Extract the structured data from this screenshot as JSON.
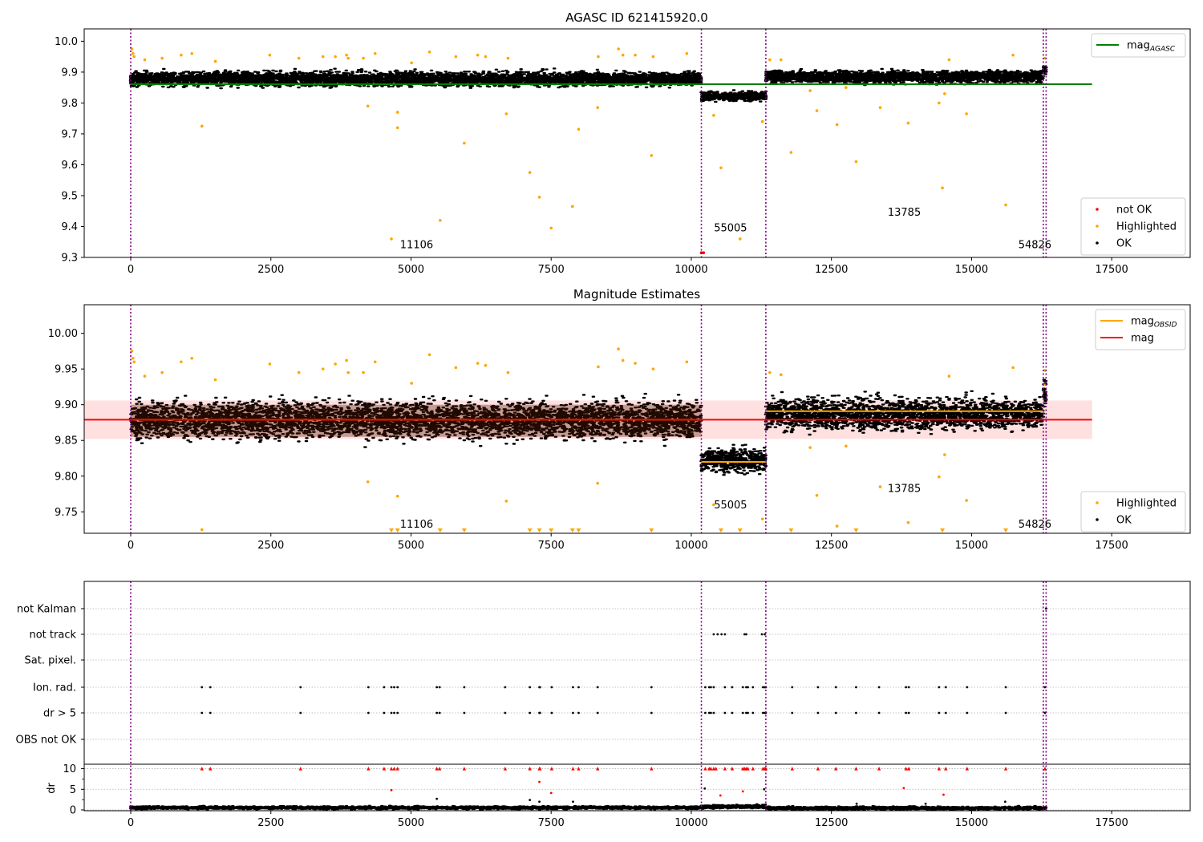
{
  "chart_data": [
    {
      "type": "scatter",
      "title": "AGASC ID 621415920.0",
      "xlim": [
        -830,
        18900
      ],
      "ylim": [
        9.3,
        10.04
      ],
      "xticks": [
        0,
        2500,
        5000,
        7500,
        10000,
        12500,
        15000,
        17500
      ],
      "yticks": [
        9.3,
        9.4,
        9.5,
        9.6,
        9.7,
        9.8,
        9.9,
        10.0
      ],
      "ytick_labels": [
        "9.3",
        "9.4",
        "9.5",
        "9.6",
        "9.7",
        "9.8",
        "9.9",
        "10.0"
      ],
      "grid": false,
      "legend_upper": {
        "placement": "top-right",
        "entries": [
          {
            "label": "mag",
            "sub": "AGASC",
            "color": "#008000",
            "kind": "line"
          }
        ]
      },
      "legend_lower": {
        "placement": "bottom-right",
        "entries": [
          {
            "label": "not OK",
            "color": "#ff0000",
            "kind": "dot"
          },
          {
            "label": "Highlighted",
            "color": "#ffa500",
            "kind": "dot"
          },
          {
            "label": "OK",
            "color": "#000000",
            "kind": "dot"
          }
        ]
      },
      "agasc_mag": 9.861,
      "agasc_line_x": [
        0,
        17150
      ],
      "obs_boundaries": [
        0,
        10180,
        11330,
        16280,
        16330
      ],
      "obs_labels": [
        {
          "text": "11106",
          "x": 5100,
          "y": 9.33
        },
        {
          "text": "55005",
          "x": 10700,
          "y": 9.385
        },
        {
          "text": "13785",
          "x": 13800,
          "y": 9.435
        },
        {
          "text": "54826",
          "x": 16130,
          "y": 9.33
        }
      ],
      "series": [
        {
          "name": "OK",
          "color": "#000000",
          "segments": [
            {
              "x0": 0,
              "x1": 10180,
              "mean": 9.878,
              "spread": 0.02
            },
            {
              "x0": 10180,
              "x1": 11330,
              "mean": 9.822,
              "spread": 0.013
            },
            {
              "x0": 11330,
              "x1": 16280,
              "mean": 9.885,
              "spread": 0.017
            },
            {
              "x0": 16280,
              "x1": 16330,
              "mean": 9.91,
              "spread": 0.02
            }
          ]
        },
        {
          "name": "Highlighted",
          "color": "#ffa500",
          "points": [
            [
              20,
              9.975
            ],
            [
              40,
              9.96
            ],
            [
              60,
              9.95
            ],
            [
              250,
              9.94
            ],
            [
              560,
              9.945
            ],
            [
              900,
              9.955
            ],
            [
              1090,
              9.96
            ],
            [
              1270,
              9.725
            ],
            [
              1510,
              9.935
            ],
            [
              2480,
              9.955
            ],
            [
              3000,
              9.945
            ],
            [
              3430,
              9.95
            ],
            [
              3650,
              9.95
            ],
            [
              3850,
              9.955
            ],
            [
              3880,
              9.945
            ],
            [
              4150,
              9.945
            ],
            [
              4230,
              9.79
            ],
            [
              4360,
              9.96
            ],
            [
              4650,
              9.36
            ],
            [
              4760,
              9.77
            ],
            [
              4760,
              9.72
            ],
            [
              5010,
              9.93
            ],
            [
              5330,
              9.965
            ],
            [
              5520,
              9.42
            ],
            [
              5800,
              9.95
            ],
            [
              5950,
              9.67
            ],
            [
              6190,
              9.955
            ],
            [
              6330,
              9.95
            ],
            [
              6700,
              9.765
            ],
            [
              6730,
              9.945
            ],
            [
              7120,
              9.575
            ],
            [
              7290,
              9.495
            ],
            [
              7500,
              9.395
            ],
            [
              7880,
              9.465
            ],
            [
              7990,
              9.715
            ],
            [
              8330,
              9.785
            ],
            [
              8340,
              9.95
            ],
            [
              8700,
              9.975
            ],
            [
              8780,
              9.955
            ],
            [
              9000,
              9.955
            ],
            [
              9290,
              9.63
            ],
            [
              9320,
              9.95
            ],
            [
              9920,
              9.96
            ],
            [
              10400,
              9.76
            ],
            [
              10530,
              9.59
            ],
            [
              10870,
              9.36
            ],
            [
              11270,
              9.74
            ],
            [
              11400,
              9.94
            ],
            [
              11600,
              9.94
            ],
            [
              11780,
              9.64
            ],
            [
              12120,
              9.84
            ],
            [
              12240,
              9.775
            ],
            [
              12600,
              9.73
            ],
            [
              12760,
              9.85
            ],
            [
              12940,
              9.61
            ],
            [
              13370,
              9.785
            ],
            [
              13870,
              9.735
            ],
            [
              14420,
              9.8
            ],
            [
              14480,
              9.525
            ],
            [
              14520,
              9.83
            ],
            [
              14600,
              9.94
            ],
            [
              14910,
              9.765
            ],
            [
              15610,
              9.47
            ],
            [
              15740,
              9.955
            ],
            [
              16310,
              9.945
            ]
          ]
        },
        {
          "name": "not OK",
          "color": "#ff0000",
          "points": [
            [
              10180,
              9.315
            ],
            [
              10220,
              9.315
            ]
          ]
        }
      ]
    },
    {
      "type": "scatter",
      "title": "Magnitude Estimates",
      "xlim": [
        -830,
        18900
      ],
      "ylim": [
        9.72,
        10.04
      ],
      "xticks": [
        0,
        2500,
        5000,
        7500,
        10000,
        12500,
        15000,
        17500
      ],
      "yticks": [
        9.75,
        9.8,
        9.85,
        9.9,
        9.95,
        10.0
      ],
      "ytick_labels": [
        "9.75",
        "9.80",
        "9.85",
        "9.90",
        "9.95",
        "10.00"
      ],
      "grid": false,
      "legend_upper": {
        "placement": "top-right",
        "entries": [
          {
            "label": "mag",
            "sub": "OBSID",
            "color": "#ffa500",
            "kind": "line"
          },
          {
            "label": "mag",
            "sub": "",
            "color": "#ff0000",
            "kind": "line"
          }
        ]
      },
      "legend_lower": {
        "placement": "bottom-right",
        "entries": [
          {
            "label": "Highlighted",
            "color": "#ffa500",
            "kind": "dot"
          },
          {
            "label": "OK",
            "color": "#000000",
            "kind": "dot"
          }
        ]
      },
      "mag": 9.879,
      "mag_band": [
        9.852,
        9.906
      ],
      "mag_line_x": [
        -830,
        17150
      ],
      "obsid_mags": [
        {
          "x0": 0,
          "x1": 10180,
          "mag": 9.879
        },
        {
          "x0": 10180,
          "x1": 11330,
          "mag": 9.82
        },
        {
          "x0": 11330,
          "x1": 16280,
          "mag": 9.891
        },
        {
          "x0": 16280,
          "x1": 16330,
          "mag": 9.928
        }
      ],
      "obs_boundaries": [
        0,
        10180,
        11330,
        16280,
        16330
      ],
      "obs_labels": [
        {
          "text": "11106",
          "x": 5100,
          "y": 9.728
        },
        {
          "text": "55005",
          "x": 10700,
          "y": 9.755
        },
        {
          "text": "13785",
          "x": 13800,
          "y": 9.778
        },
        {
          "text": "54826",
          "x": 16130,
          "y": 9.728
        }
      ],
      "offscale_markers_x": [
        4650,
        4760,
        5520,
        5950,
        7120,
        7290,
        7500,
        7880,
        7990,
        9290,
        10530,
        10870,
        11780,
        12940,
        14480,
        15610
      ],
      "series": [
        {
          "name": "OK",
          "color": "#000000",
          "segments": [
            {
              "x0": 0,
              "x1": 10180,
              "mean": 9.879,
              "spread": 0.022
            },
            {
              "x0": 10180,
              "x1": 11330,
              "mean": 9.822,
              "spread": 0.014
            },
            {
              "x0": 11330,
              "x1": 16280,
              "mean": 9.887,
              "spread": 0.019
            },
            {
              "x0": 16280,
              "x1": 16330,
              "mean": 9.92,
              "spread": 0.02
            }
          ]
        },
        {
          "name": "Highlighted",
          "color": "#ffa500",
          "points": [
            [
              20,
              9.975
            ],
            [
              40,
              9.965
            ],
            [
              60,
              9.96
            ],
            [
              250,
              9.94
            ],
            [
              560,
              9.945
            ],
            [
              900,
              9.96
            ],
            [
              1090,
              9.965
            ],
            [
              1270,
              9.725
            ],
            [
              1510,
              9.935
            ],
            [
              2480,
              9.957
            ],
            [
              3000,
              9.945
            ],
            [
              3430,
              9.95
            ],
            [
              3650,
              9.957
            ],
            [
              3850,
              9.962
            ],
            [
              3880,
              9.945
            ],
            [
              4150,
              9.945
            ],
            [
              4230,
              9.792
            ],
            [
              4360,
              9.96
            ],
            [
              4760,
              9.772
            ],
            [
              5010,
              9.93
            ],
            [
              5330,
              9.97
            ],
            [
              5800,
              9.952
            ],
            [
              6190,
              9.958
            ],
            [
              6330,
              9.955
            ],
            [
              6700,
              9.765
            ],
            [
              6730,
              9.945
            ],
            [
              8330,
              9.79
            ],
            [
              8340,
              9.953
            ],
            [
              8700,
              9.978
            ],
            [
              8780,
              9.962
            ],
            [
              9000,
              9.958
            ],
            [
              9320,
              9.95
            ],
            [
              9920,
              9.96
            ],
            [
              10400,
              9.76
            ],
            [
              11270,
              9.74
            ],
            [
              11400,
              9.945
            ],
            [
              11600,
              9.942
            ],
            [
              12120,
              9.84
            ],
            [
              12240,
              9.773
            ],
            [
              12600,
              9.73
            ],
            [
              12760,
              9.842
            ],
            [
              13370,
              9.785
            ],
            [
              13870,
              9.735
            ],
            [
              14420,
              9.799
            ],
            [
              14520,
              9.83
            ],
            [
              14600,
              9.94
            ],
            [
              14910,
              9.766
            ],
            [
              15740,
              9.952
            ],
            [
              16310,
              9.948
            ]
          ]
        }
      ]
    },
    {
      "type": "scatter",
      "title": "",
      "xlim": [
        -830,
        18900
      ],
      "xticks": [
        0,
        2500,
        5000,
        7500,
        10000,
        12500,
        15000,
        17500
      ],
      "flag_rows": [
        "not Kalman",
        "not track",
        "Sat. pixel.",
        "Ion. rad.",
        "dr > 5",
        "OBS not OK"
      ],
      "grid": true,
      "obs_boundaries": [
        0,
        10180,
        11330,
        16280,
        16330
      ],
      "flags": {
        "not Kalman": [
          16330
        ],
        "not track": [
          10400,
          10470,
          10540,
          10600,
          10950,
          10980,
          11260,
          11310
        ],
        "Sat. pixel.": [],
        "Ion. rad.": [
          1270,
          1420,
          3030,
          4240,
          4520,
          4650,
          4700,
          4760,
          5460,
          5510,
          5950,
          6680,
          7120,
          7290,
          7300,
          7510,
          7890,
          7990,
          8330,
          9290,
          10250,
          10320,
          10350,
          10400,
          10600,
          10730,
          10920,
          10980,
          11010,
          11100,
          11280,
          11310,
          11330,
          11800,
          12260,
          12580,
          12940,
          13350,
          13830,
          13880,
          14420,
          14540,
          14920,
          15610,
          16310
        ],
        "dr > 5": [
          1270,
          1420,
          3030,
          4240,
          4520,
          4650,
          4700,
          4760,
          5460,
          5510,
          5950,
          6680,
          7120,
          7290,
          7300,
          7510,
          7890,
          7990,
          8330,
          9290,
          10250,
          10320,
          10350,
          10400,
          10600,
          10730,
          10920,
          10980,
          11010,
          11100,
          11280,
          11310,
          11330,
          11800,
          12260,
          12580,
          12940,
          13350,
          13830,
          13880,
          14420,
          14540,
          14920,
          15610,
          16310
        ],
        "OBS not OK": []
      },
      "dr": {
        "ylabel": "dr",
        "ylim": [
          0,
          10.5
        ],
        "yticks": [
          0,
          5,
          10
        ],
        "clip": 10,
        "baseline_segments": [
          {
            "x0": 0,
            "x1": 10180,
            "mean": 0.55,
            "spread": 0.3
          },
          {
            "x0": 10180,
            "x1": 11330,
            "mean": 0.8,
            "spread": 0.35
          },
          {
            "x0": 11330,
            "x1": 16330,
            "mean": 0.45,
            "spread": 0.3
          }
        ],
        "clipped_points_x": [
          1270,
          1420,
          3030,
          4240,
          4520,
          4650,
          4700,
          4760,
          5460,
          5510,
          5950,
          6680,
          7120,
          7290,
          7300,
          7510,
          7890,
          7990,
          8330,
          9290,
          10250,
          10320,
          10350,
          10400,
          10440,
          10600,
          10730,
          10920,
          10950,
          10980,
          11010,
          11100,
          11280,
          11310,
          11330,
          11800,
          12260,
          12580,
          12940,
          13350,
          13830,
          13880,
          14420,
          14540,
          14920,
          15610,
          16310
        ],
        "red_points": [
          [
            4650,
            4.8
          ],
          [
            7290,
            6.8
          ],
          [
            7500,
            4.1
          ],
          [
            10520,
            3.5
          ],
          [
            10920,
            4.5
          ],
          [
            13790,
            5.3
          ],
          [
            14500,
            3.7
          ]
        ],
        "black_points": [
          [
            5460,
            2.7
          ],
          [
            7120,
            2.4
          ],
          [
            7290,
            2.0
          ],
          [
            7890,
            2.0
          ],
          [
            10240,
            5.2
          ],
          [
            11300,
            5.0
          ],
          [
            12950,
            1.5
          ],
          [
            14180,
            1.5
          ],
          [
            15600,
            2.0
          ]
        ]
      }
    }
  ]
}
